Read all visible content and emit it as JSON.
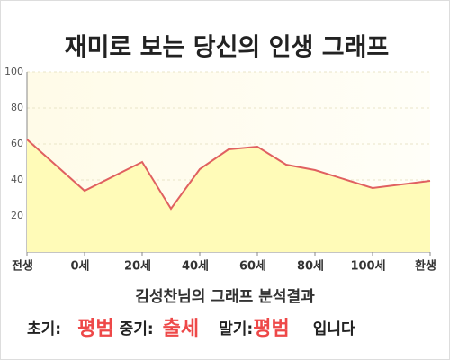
{
  "chart_data": {
    "type": "area",
    "title": "재미로 보는 당신의 인생 그래프",
    "x": [
      -20,
      0,
      20,
      30,
      40,
      50,
      60,
      70,
      80,
      100,
      120
    ],
    "values": [
      62.5,
      34,
      50,
      24,
      46,
      57,
      58.5,
      48.5,
      45.5,
      35.5,
      39.5
    ],
    "color": "#e06060",
    "fill": "#fffbb8",
    "xlim": [
      -20,
      120
    ],
    "xticks": [
      {
        "value": -20,
        "label": "전생"
      },
      {
        "value": 0,
        "label": "0세"
      },
      {
        "value": 20,
        "label": "20세"
      },
      {
        "value": 40,
        "label": "40세"
      },
      {
        "value": 60,
        "label": "60세"
      },
      {
        "value": 80,
        "label": "80세"
      },
      {
        "value": 100,
        "label": "100세"
      },
      {
        "value": 120,
        "label": "환생"
      }
    ],
    "ylim": [
      0,
      100
    ],
    "yticks": [
      20,
      40,
      60,
      80,
      100
    ],
    "grid": true
  },
  "result": {
    "heading": "김성찬님의 그래프 분석결과",
    "items": [
      {
        "label": "초기:",
        "value": "평범"
      },
      {
        "label": "중기:",
        "value": "출세"
      },
      {
        "label": "말기:",
        "value": "평범"
      }
    ],
    "suffix": "입니다"
  }
}
